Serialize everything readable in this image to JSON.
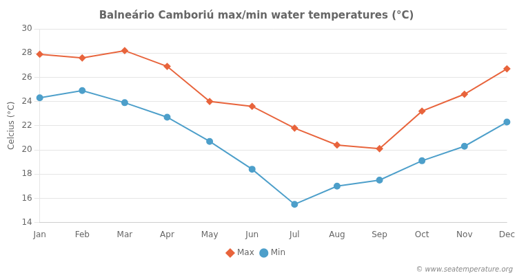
{
  "chart_data": {
    "type": "line",
    "title": "Balneário Camboriú max/min water temperatures (°C)",
    "y_label": "Celcius (°C)",
    "categories": [
      "Jan",
      "Feb",
      "Mar",
      "Apr",
      "May",
      "Jun",
      "Jul",
      "Aug",
      "Sep",
      "Oct",
      "Nov",
      "Dec"
    ],
    "series": [
      {
        "name": "Max",
        "color": "#e8643c",
        "marker": "diamond",
        "values": [
          27.9,
          27.6,
          28.2,
          26.9,
          24.0,
          23.6,
          21.8,
          20.4,
          20.1,
          23.2,
          24.6,
          26.7
        ]
      },
      {
        "name": "Min",
        "color": "#4d9fca",
        "marker": "circle",
        "values": [
          24.3,
          24.9,
          23.9,
          22.7,
          20.7,
          18.4,
          15.5,
          17.0,
          17.5,
          19.1,
          20.3,
          22.3
        ]
      }
    ],
    "ylim": [
      14,
      30
    ],
    "yticks": [
      14,
      16,
      18,
      20,
      22,
      24,
      26,
      28,
      30
    ],
    "grid": true,
    "legend": "bottom",
    "annotations": [
      "© www.seatemperature.org"
    ]
  }
}
